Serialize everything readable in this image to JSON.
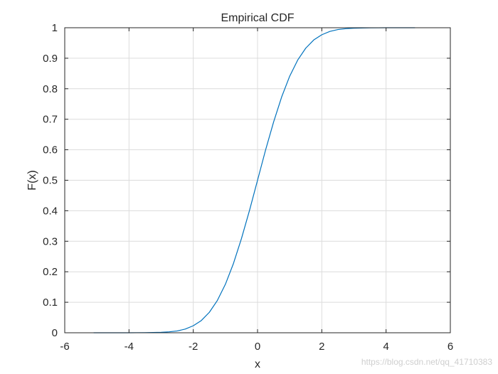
{
  "chart_data": {
    "type": "line",
    "title": "Empirical CDF",
    "xlabel": "x",
    "ylabel": "F(x)",
    "xlim": [
      -6,
      6
    ],
    "ylim": [
      0,
      1
    ],
    "xticks": [
      "-6",
      "-4",
      "-2",
      "0",
      "2",
      "4",
      "6"
    ],
    "yticks": [
      "0",
      "0.1",
      "0.2",
      "0.3",
      "0.4",
      "0.5",
      "0.6",
      "0.7",
      "0.8",
      "0.9",
      "1"
    ],
    "grid": true,
    "series": [
      {
        "color": "#0072BD",
        "x": [
          -5.1,
          -4.5,
          -4.0,
          -3.5,
          -3.0,
          -2.75,
          -2.5,
          -2.25,
          -2.0,
          -1.75,
          -1.5,
          -1.25,
          -1.0,
          -0.75,
          -0.5,
          -0.25,
          0.0,
          0.25,
          0.5,
          0.75,
          1.0,
          1.25,
          1.5,
          1.75,
          2.0,
          2.25,
          2.5,
          2.75,
          3.0,
          3.5,
          4.0,
          4.5,
          4.9
        ],
        "y": [
          0.0,
          0.0,
          0.0,
          0.0005,
          0.0015,
          0.003,
          0.006,
          0.012,
          0.023,
          0.04,
          0.067,
          0.106,
          0.159,
          0.227,
          0.309,
          0.401,
          0.5,
          0.599,
          0.691,
          0.773,
          0.841,
          0.894,
          0.933,
          0.96,
          0.977,
          0.988,
          0.994,
          0.997,
          0.9985,
          0.9995,
          1.0,
          1.0,
          1.0
        ]
      }
    ]
  },
  "watermark": "https://blog.csdn.net/qq_41710383"
}
